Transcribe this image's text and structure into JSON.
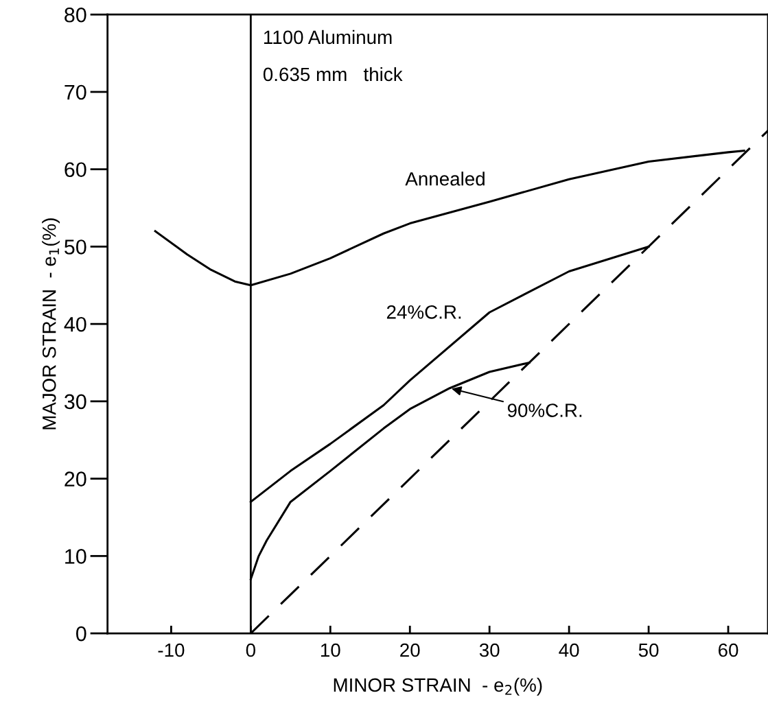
{
  "chart_data": {
    "type": "line",
    "xlabel": "MINOR STRAIN  - e$_{2}$(%)",
    "ylabel": "MAJOR STRAIN  - e$_{1}$(%)",
    "annotations": [
      "1100 Aluminum",
      "0.635 mm   thick"
    ],
    "xlim": [
      -18,
      65
    ],
    "ylim": [
      0,
      80
    ],
    "xticks": [
      -10,
      0,
      10,
      20,
      30,
      40,
      50,
      60
    ],
    "yticks": [
      0,
      10,
      20,
      30,
      40,
      50,
      60,
      70,
      80
    ],
    "grid": false,
    "legend": false,
    "marker": "none",
    "ref_lines": [
      {
        "axis": "x",
        "value": 0,
        "color": "#000000",
        "line_style": "solid"
      }
    ],
    "series": [
      {
        "name": "Annealed",
        "color": "#000000",
        "line_style": "solid",
        "x": [
          -12,
          -8,
          -5,
          -2,
          0,
          5,
          10,
          16.7,
          20,
          30,
          40,
          50,
          60,
          62
        ],
        "values": [
          52,
          49,
          47,
          45.5,
          45,
          46.5,
          48.5,
          51.7,
          53,
          55.8,
          58.7,
          61,
          62.2,
          62.4
        ]
      },
      {
        "name": "24%C.R.",
        "color": "#000000",
        "line_style": "solid",
        "x": [
          0,
          5,
          10,
          16.7,
          20,
          30,
          40,
          50
        ],
        "values": [
          17,
          21,
          24.5,
          29.5,
          32.7,
          41.5,
          46.8,
          50
        ]
      },
      {
        "name": "90%C.R.",
        "color": "#000000",
        "line_style": "solid",
        "x": [
          0,
          1,
          2,
          5,
          10,
          16.7,
          20,
          25,
          30,
          35
        ],
        "values": [
          7,
          10,
          12,
          17,
          21,
          26.5,
          29,
          31.7,
          33.8,
          35
        ]
      },
      {
        "color": "#000000",
        "line_style": "dashed",
        "x": [
          0,
          65
        ],
        "values": [
          0,
          65
        ]
      }
    ]
  }
}
